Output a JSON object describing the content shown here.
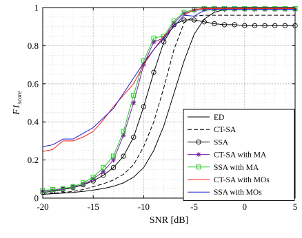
{
  "chart_data": {
    "type": "line",
    "xlabel": "SNR [dB]",
    "ylabel": {
      "main": "F1",
      "subscript": "score"
    },
    "xlim": [
      -20,
      5
    ],
    "ylim": [
      0,
      1
    ],
    "xticks": [
      -20,
      -15,
      -10,
      -5,
      0,
      5
    ],
    "yticks": [
      0,
      0.2,
      0.4,
      0.6,
      0.8,
      1
    ],
    "xtick_labels": [
      "-20",
      "-15",
      "-10",
      "-5",
      "0",
      "5"
    ],
    "ytick_labels": [
      "0",
      "0.2",
      "0.4",
      "0.6",
      "0.8",
      "1"
    ],
    "grid": true,
    "legend_position": "bottom-right",
    "x": [
      -20,
      -19,
      -18,
      -17,
      -16,
      -15,
      -14,
      -13,
      -12,
      -11,
      -10,
      -9,
      -8,
      -7,
      -6,
      -5,
      -4,
      -3,
      -2,
      -1,
      0,
      1,
      2,
      3,
      4,
      5
    ],
    "series": [
      {
        "name": "ED",
        "color": "#000000",
        "dash": "solid",
        "marker": "none",
        "values": [
          0.02,
          0.023,
          0.026,
          0.03,
          0.035,
          0.042,
          0.05,
          0.062,
          0.08,
          0.11,
          0.16,
          0.25,
          0.38,
          0.55,
          0.72,
          0.86,
          0.94,
          0.975,
          0.99,
          0.995,
          0.997,
          0.998,
          0.998,
          0.998,
          0.998,
          0.998
        ]
      },
      {
        "name": "CT-SA",
        "color": "#000000",
        "dash": "dashed",
        "marker": "none",
        "values": [
          0.02,
          0.025,
          0.03,
          0.035,
          0.045,
          0.06,
          0.075,
          0.095,
          0.125,
          0.175,
          0.27,
          0.4,
          0.58,
          0.78,
          0.92,
          0.955,
          0.96,
          0.96,
          0.96,
          0.96,
          0.96,
          0.96,
          0.96,
          0.96,
          0.96,
          0.96
        ]
      },
      {
        "name": "SSA",
        "color": "#000000",
        "dash": "solid",
        "marker": "circle",
        "values": [
          0.03,
          0.035,
          0.045,
          0.055,
          0.07,
          0.09,
          0.12,
          0.16,
          0.22,
          0.32,
          0.48,
          0.66,
          0.82,
          0.91,
          0.935,
          0.935,
          0.925,
          0.915,
          0.91,
          0.91,
          0.905,
          0.905,
          0.905,
          0.905,
          0.905,
          0.905
        ]
      },
      {
        "name": "CT-SA with MA",
        "color": "#7a1fa2",
        "dash": "solid",
        "marker": "star",
        "values": [
          0.035,
          0.04,
          0.048,
          0.058,
          0.072,
          0.1,
          0.14,
          0.2,
          0.33,
          0.5,
          0.7,
          0.82,
          0.84,
          0.92,
          0.97,
          0.985,
          0.99,
          0.99,
          0.99,
          0.99,
          0.99,
          0.99,
          0.99,
          0.99,
          0.99,
          0.99
        ]
      },
      {
        "name": "SSA with MA",
        "color": "#22cc22",
        "dash": "solid",
        "marker": "square",
        "values": [
          0.04,
          0.045,
          0.05,
          0.06,
          0.08,
          0.11,
          0.16,
          0.22,
          0.35,
          0.54,
          0.72,
          0.84,
          0.85,
          0.93,
          0.975,
          0.99,
          0.995,
          0.995,
          0.995,
          0.995,
          0.995,
          0.995,
          0.995,
          0.995,
          0.995,
          0.995
        ]
      },
      {
        "name": "CT-SA with MOs",
        "color": "#ff1a1a",
        "dash": "solid",
        "marker": "none",
        "values": [
          0.245,
          0.255,
          0.3,
          0.3,
          0.32,
          0.35,
          0.41,
          0.48,
          0.54,
          0.6,
          0.7,
          0.78,
          0.85,
          0.9,
          0.96,
          0.99,
          0.995,
          0.995,
          0.995,
          0.995,
          0.995,
          0.995,
          0.995,
          0.995,
          0.995,
          0.995
        ]
      },
      {
        "name": "SSA with MOs",
        "color": "#1a1acc",
        "dash": "solid",
        "marker": "none",
        "values": [
          0.27,
          0.28,
          0.31,
          0.31,
          0.34,
          0.37,
          0.42,
          0.47,
          0.55,
          0.63,
          0.71,
          0.78,
          0.84,
          0.9,
          0.96,
          0.955,
          0.985,
          0.99,
          0.99,
          0.99,
          0.99,
          0.99,
          0.99,
          0.99,
          0.99,
          0.99
        ]
      }
    ]
  }
}
